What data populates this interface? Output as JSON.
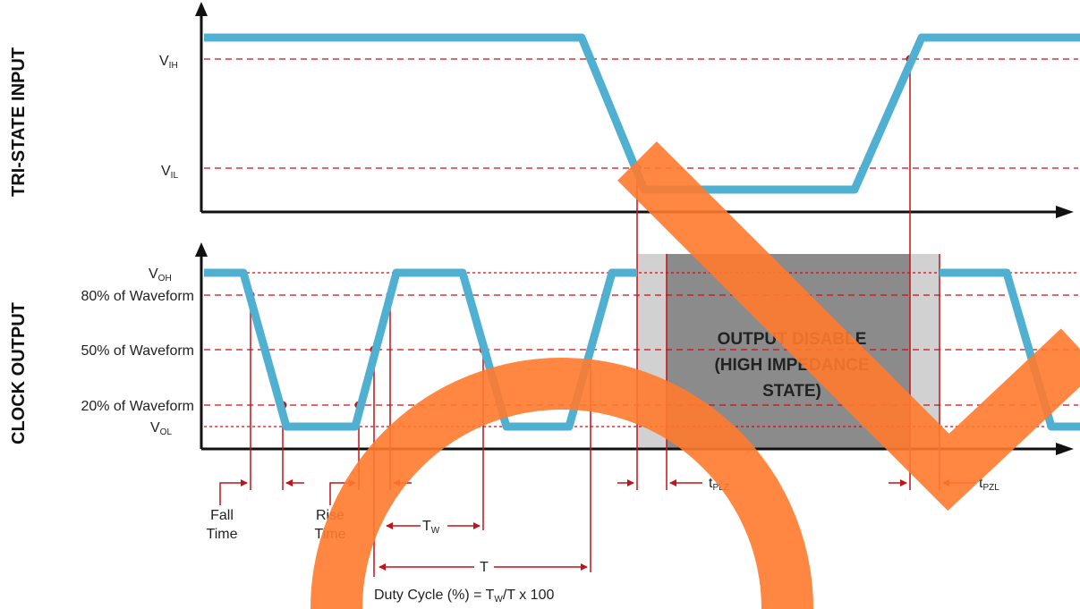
{
  "side_labels": {
    "top": "TRI-STATE INPUT",
    "bottom": "CLOCK OUTPUT"
  },
  "top_levels": {
    "vih_main": "V",
    "vih_sub": "IH",
    "vil_main": "V",
    "vil_sub": "IL"
  },
  "bottom_levels": {
    "voh_main": "V",
    "voh_sub": "OH",
    "p80": "80% of Waveform",
    "p50": "50% of Waveform",
    "p20": "20% of Waveform",
    "vol_main": "V",
    "vol_sub": "OL"
  },
  "output_disable": {
    "line1": "OUTPUT DISABLE",
    "line2": "(HIGH IMPEDANCE",
    "line3": "STATE)"
  },
  "timing": {
    "fall_line1": "Fall",
    "fall_line2": "Time",
    "rise_line1": "Rise",
    "rise_line2": "Time",
    "tw_main": "T",
    "tw_sub": "W",
    "t": "T",
    "tplz_main": "t",
    "tplz_sub": "PLZ",
    "tpzl_main": "t",
    "tpzl_sub": "PZL"
  },
  "duty_cycle": {
    "part1": "Duty Cycle (%) = T",
    "sub": "W",
    "part2": "/T x 100"
  },
  "colors": {
    "waveform": "#4fb0d1",
    "marker": "#c0141a",
    "shade_light": "#d1d1d1",
    "shade_dark": "#8b8b8b",
    "overlay": "#ff7a2e",
    "axis": "#111111"
  }
}
